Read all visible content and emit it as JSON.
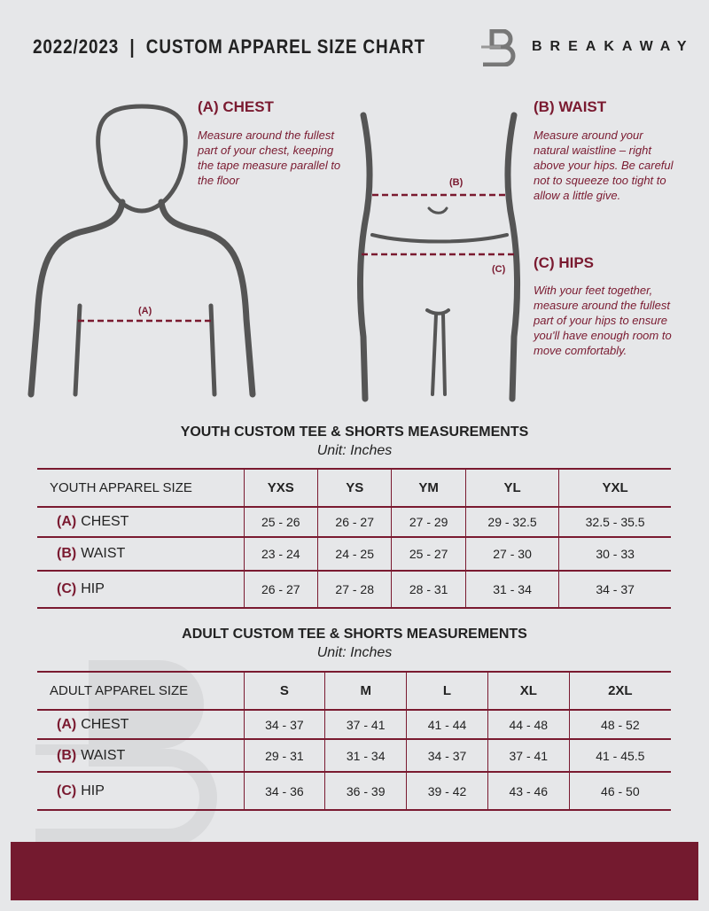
{
  "header": {
    "title": "2022/2023  |  CUSTOM APPAREL SIZE CHART",
    "brand": "BREAKAWAY",
    "logo_letter": "B"
  },
  "colors": {
    "accent": "#7a1a30",
    "background": "#e6e7e9"
  },
  "measure": {
    "chest": {
      "title": "(A) CHEST",
      "text": "Measure around the fullest part of your chest, keeping the tape measure parallel to the floor",
      "marker": "(A)"
    },
    "waist": {
      "title": "(B) WAIST",
      "text": "Measure around your natural waistline – right above your hips. Be careful not to squeeze too tight to allow a little give.",
      "marker": "(B)"
    },
    "hips": {
      "title": "(C) HIPS",
      "text": "With your feet together, measure around the fullest part of your hips to ensure you'll have enough room to move comfortably.",
      "marker": "(C)"
    }
  },
  "youth": {
    "title": "YOUTH CUSTOM TEE & SHORTS MEASUREMENTS",
    "unit": "Unit: Inches",
    "header": "YOUTH APPAREL SIZE",
    "sizes": [
      "YXS",
      "YS",
      "YM",
      "YL",
      "YXL"
    ],
    "rows": [
      {
        "tag": "(A)",
        "label": "CHEST",
        "values": [
          "25 - 26",
          "26 - 27",
          "27 - 29",
          "29 - 32.5",
          "32.5 - 35.5"
        ]
      },
      {
        "tag": "(B)",
        "label": "WAIST",
        "values": [
          "23 - 24",
          "24 - 25",
          "25 - 27",
          "27 - 30",
          "30 - 33"
        ]
      },
      {
        "tag": "(C)",
        "label": "HIP",
        "values": [
          "26 - 27",
          "27 - 28",
          "28 - 31",
          "31 - 34",
          "34 - 37"
        ]
      }
    ]
  },
  "adult": {
    "title": "ADULT CUSTOM TEE & SHORTS MEASUREMENTS",
    "unit": "Unit: Inches",
    "header": "ADULT APPAREL SIZE",
    "sizes": [
      "S",
      "M",
      "L",
      "XL",
      "2XL"
    ],
    "rows": [
      {
        "tag": "(A)",
        "label": "CHEST",
        "values": [
          "34 - 37",
          "37 - 41",
          "41 - 44",
          "44 - 48",
          "48 - 52"
        ]
      },
      {
        "tag": "(B)",
        "label": "WAIST",
        "values": [
          "29 - 31",
          "31 - 34",
          "34 - 37",
          "37 - 41",
          "41 - 45.5"
        ]
      },
      {
        "tag": "(C)",
        "label": "HIP",
        "values": [
          "34 - 36",
          "36 - 39",
          "39 - 42",
          "43 - 46",
          "46 - 50"
        ]
      }
    ]
  }
}
